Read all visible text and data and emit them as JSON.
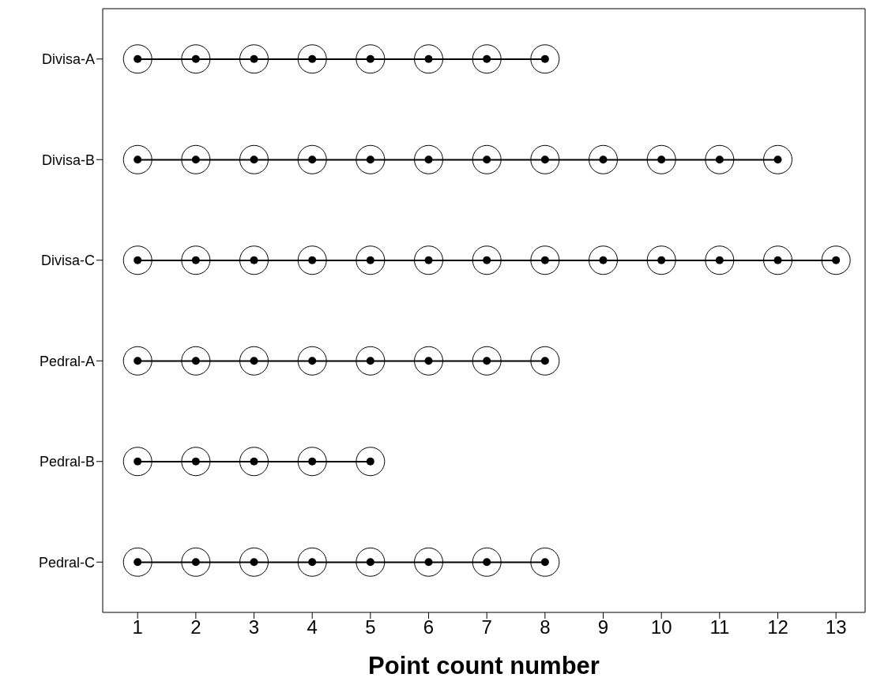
{
  "chart_data": {
    "type": "scatter",
    "orientation": "horizontal",
    "xlabel": "Point count number",
    "categories": [
      "Divisa-A",
      "Divisa-B",
      "Divisa-C",
      "Pedral-A",
      "Pedral-B",
      "Pedral-C"
    ],
    "series": [
      {
        "type": "bar",
        "color": "#000000",
        "base": [
          1,
          1,
          1,
          1,
          1,
          1
        ],
        "values": [
          7,
          11,
          12,
          7,
          4,
          7
        ]
      },
      {
        "color": "#000000",
        "values": [
          1,
          1,
          1,
          1,
          1,
          1
        ]
      },
      {
        "color": "#000000",
        "values": [
          2,
          2,
          2,
          2,
          2,
          2
        ]
      },
      {
        "color": "#000000",
        "values": [
          3,
          3,
          3,
          3,
          3,
          3
        ]
      },
      {
        "color": "#000000",
        "values": [
          4,
          4,
          4,
          4,
          4,
          4
        ]
      },
      {
        "color": "#000000",
        "values": [
          5,
          5,
          5,
          5,
          5,
          5
        ]
      },
      {
        "color": "#000000",
        "values": [
          6,
          6,
          6,
          6,
          null,
          6
        ]
      },
      {
        "color": "#000000",
        "values": [
          7,
          7,
          7,
          7,
          null,
          7
        ]
      },
      {
        "color": "#000000",
        "values": [
          8,
          8,
          8,
          8,
          null,
          8
        ]
      },
      {
        "color": "#000000",
        "values": [
          null,
          9,
          9,
          null,
          null,
          null
        ]
      },
      {
        "color": "#000000",
        "values": [
          null,
          10,
          10,
          null,
          null,
          null
        ]
      },
      {
        "color": "#000000",
        "values": [
          null,
          11,
          11,
          null,
          null,
          null
        ]
      },
      {
        "color": "#000000",
        "values": [
          null,
          12,
          12,
          null,
          null,
          null
        ]
      },
      {
        "color": "#000000",
        "values": [
          null,
          null,
          13,
          null,
          null,
          null
        ]
      }
    ],
    "xlim": [
      0.4,
      13.5
    ],
    "xticks": [
      1,
      2,
      3,
      4,
      5,
      6,
      7,
      8,
      9,
      10,
      11,
      12,
      13
    ],
    "grid": false,
    "legend": false,
    "marker": "circle"
  }
}
